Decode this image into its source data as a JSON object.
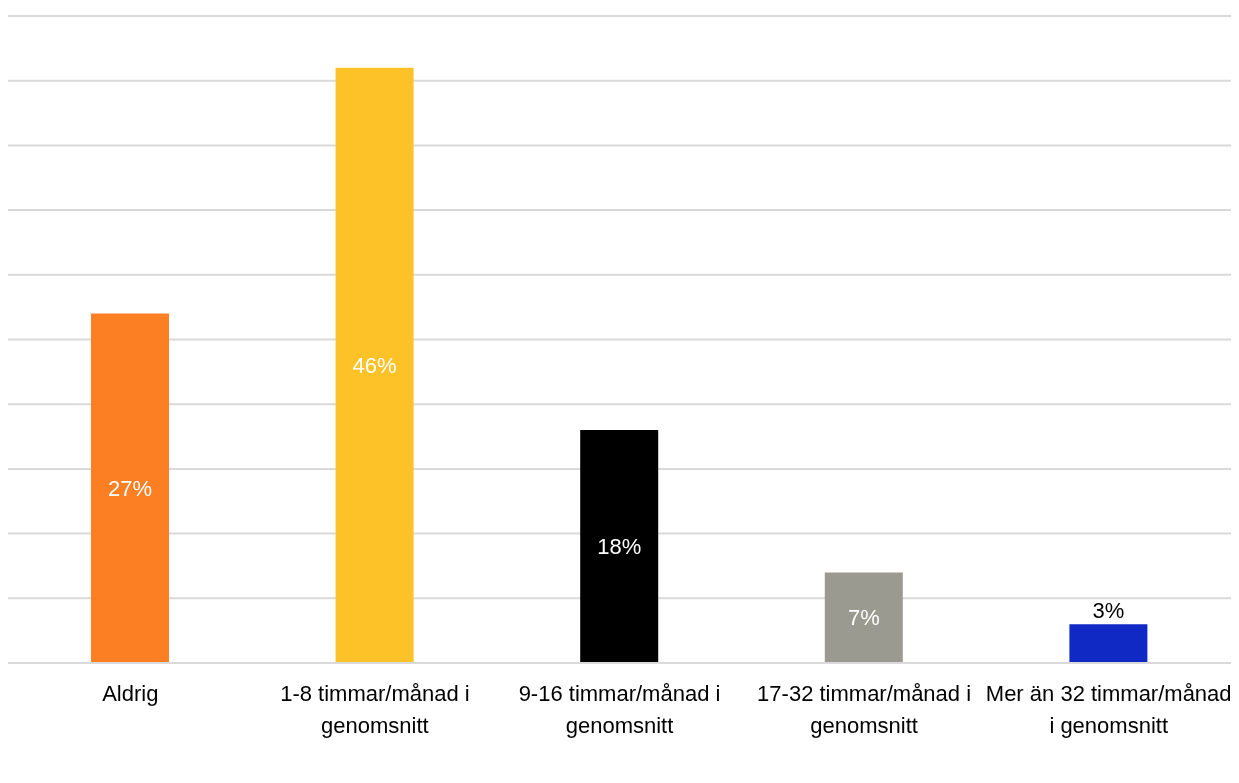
{
  "chart_data": {
    "type": "bar",
    "categories": [
      "Aldrig",
      "1-8 timmar/månad i genomsnitt",
      "9-16 timmar/månad i genomsnitt",
      "17-32 timmar/månad i genomsnitt",
      "Mer än 32 timmar/månad i genomsnitt"
    ],
    "values": [
      27,
      46,
      18,
      7,
      3
    ],
    "colors": [
      "#fd7f23",
      "#fdc228",
      "#000000",
      "#9b9a90",
      "#1029c4"
    ],
    "ylim": [
      0,
      50
    ],
    "yticks": [
      {
        "value": 0,
        "label": null
      },
      {
        "value": 5,
        "label": null
      },
      {
        "value": 10,
        "label": null
      },
      {
        "value": 15,
        "label": null
      },
      {
        "value": 20,
        "label": null
      },
      {
        "value": 25,
        "label": null
      },
      {
        "value": 30,
        "label": null
      },
      {
        "value": 35,
        "label": null
      },
      {
        "value": 40,
        "label": null
      },
      {
        "value": 45,
        "label": null
      },
      {
        "value": 50,
        "label": null
      }
    ],
    "value_labels": [
      "27%",
      "46%",
      "18%",
      "7%",
      "3%"
    ],
    "grid": "y",
    "tick_labels": "x",
    "legend": false
  }
}
